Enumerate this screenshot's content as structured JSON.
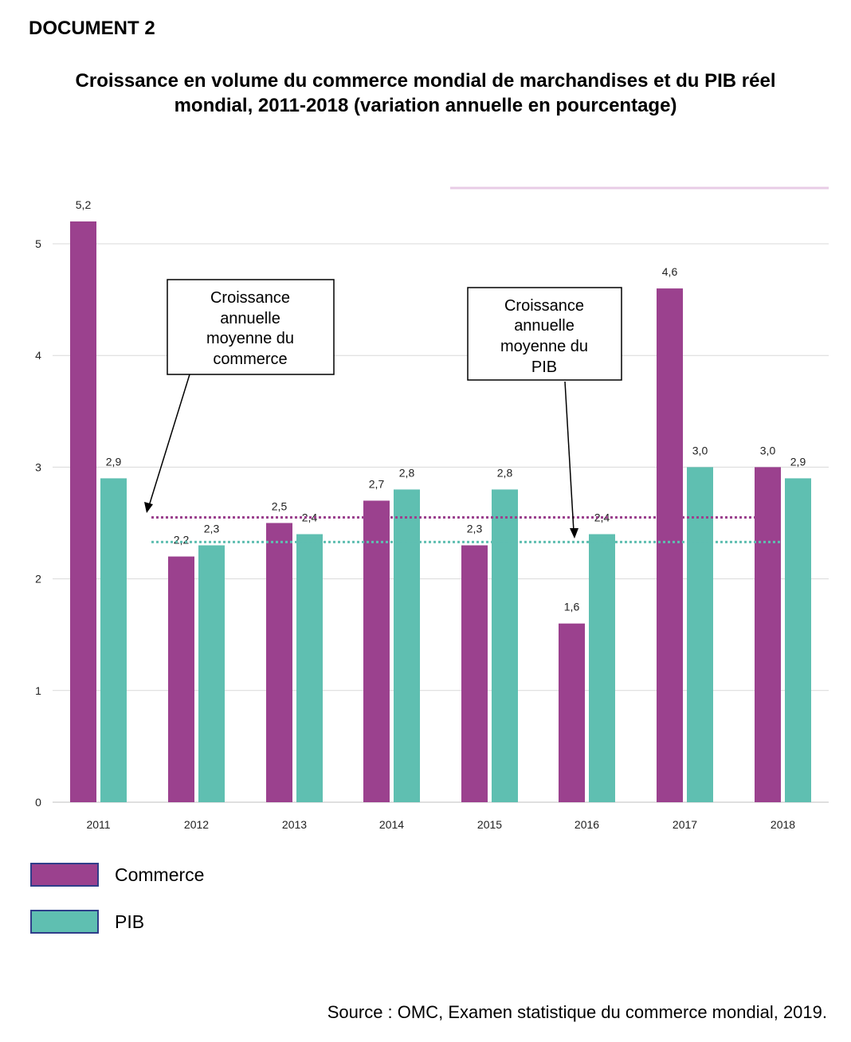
{
  "header": {
    "document_label": "DOCUMENT 2",
    "title_line1": "Croissance en volume du commerce mondial de marchandises et du PIB réel",
    "title_line2": "mondial, 2011-2018 (variation annuelle en pourcentage)"
  },
  "annotations": {
    "commerce_avg": [
      "Croissance",
      "annuelle",
      "moyenne du",
      "commerce"
    ],
    "pib_avg": [
      "Croissance",
      "annuelle",
      "moyenne du",
      "PIB"
    ]
  },
  "legend": {
    "commerce": "Commerce",
    "pib": "PIB"
  },
  "source": "Source : OMC, Examen statistique du commerce mondial, 2019.",
  "colors": {
    "commerce": "#9b418e",
    "pib": "#5fbfb1",
    "grid": "#d9d9d9"
  },
  "chart_data": {
    "type": "bar",
    "categories": [
      "2011",
      "2012",
      "2013",
      "2014",
      "2015",
      "2016",
      "2017",
      "2018"
    ],
    "series": [
      {
        "name": "Commerce",
        "values": [
          5.2,
          2.2,
          2.5,
          2.7,
          2.3,
          1.6,
          4.6,
          3.0
        ],
        "labels": [
          "5,2",
          "2,2",
          "2,5",
          "2,7",
          "2,3",
          "1,6",
          "4,6",
          "3,0"
        ]
      },
      {
        "name": "PIB",
        "values": [
          2.9,
          2.3,
          2.4,
          2.8,
          2.8,
          2.4,
          3.0,
          2.9
        ],
        "labels": [
          "2,9",
          "2,3",
          "2,4",
          "2,8",
          "2,8",
          "2,4",
          "3,0",
          "2,9"
        ]
      }
    ],
    "y_ticks": [
      0,
      1,
      2,
      3,
      4,
      5
    ],
    "ylim": [
      0,
      5.2
    ],
    "reference_lines": [
      {
        "series": "Commerce",
        "value": 2.55
      },
      {
        "series": "PIB",
        "value": 2.33
      }
    ],
    "grid": true,
    "legend_position": "bottom-left"
  }
}
